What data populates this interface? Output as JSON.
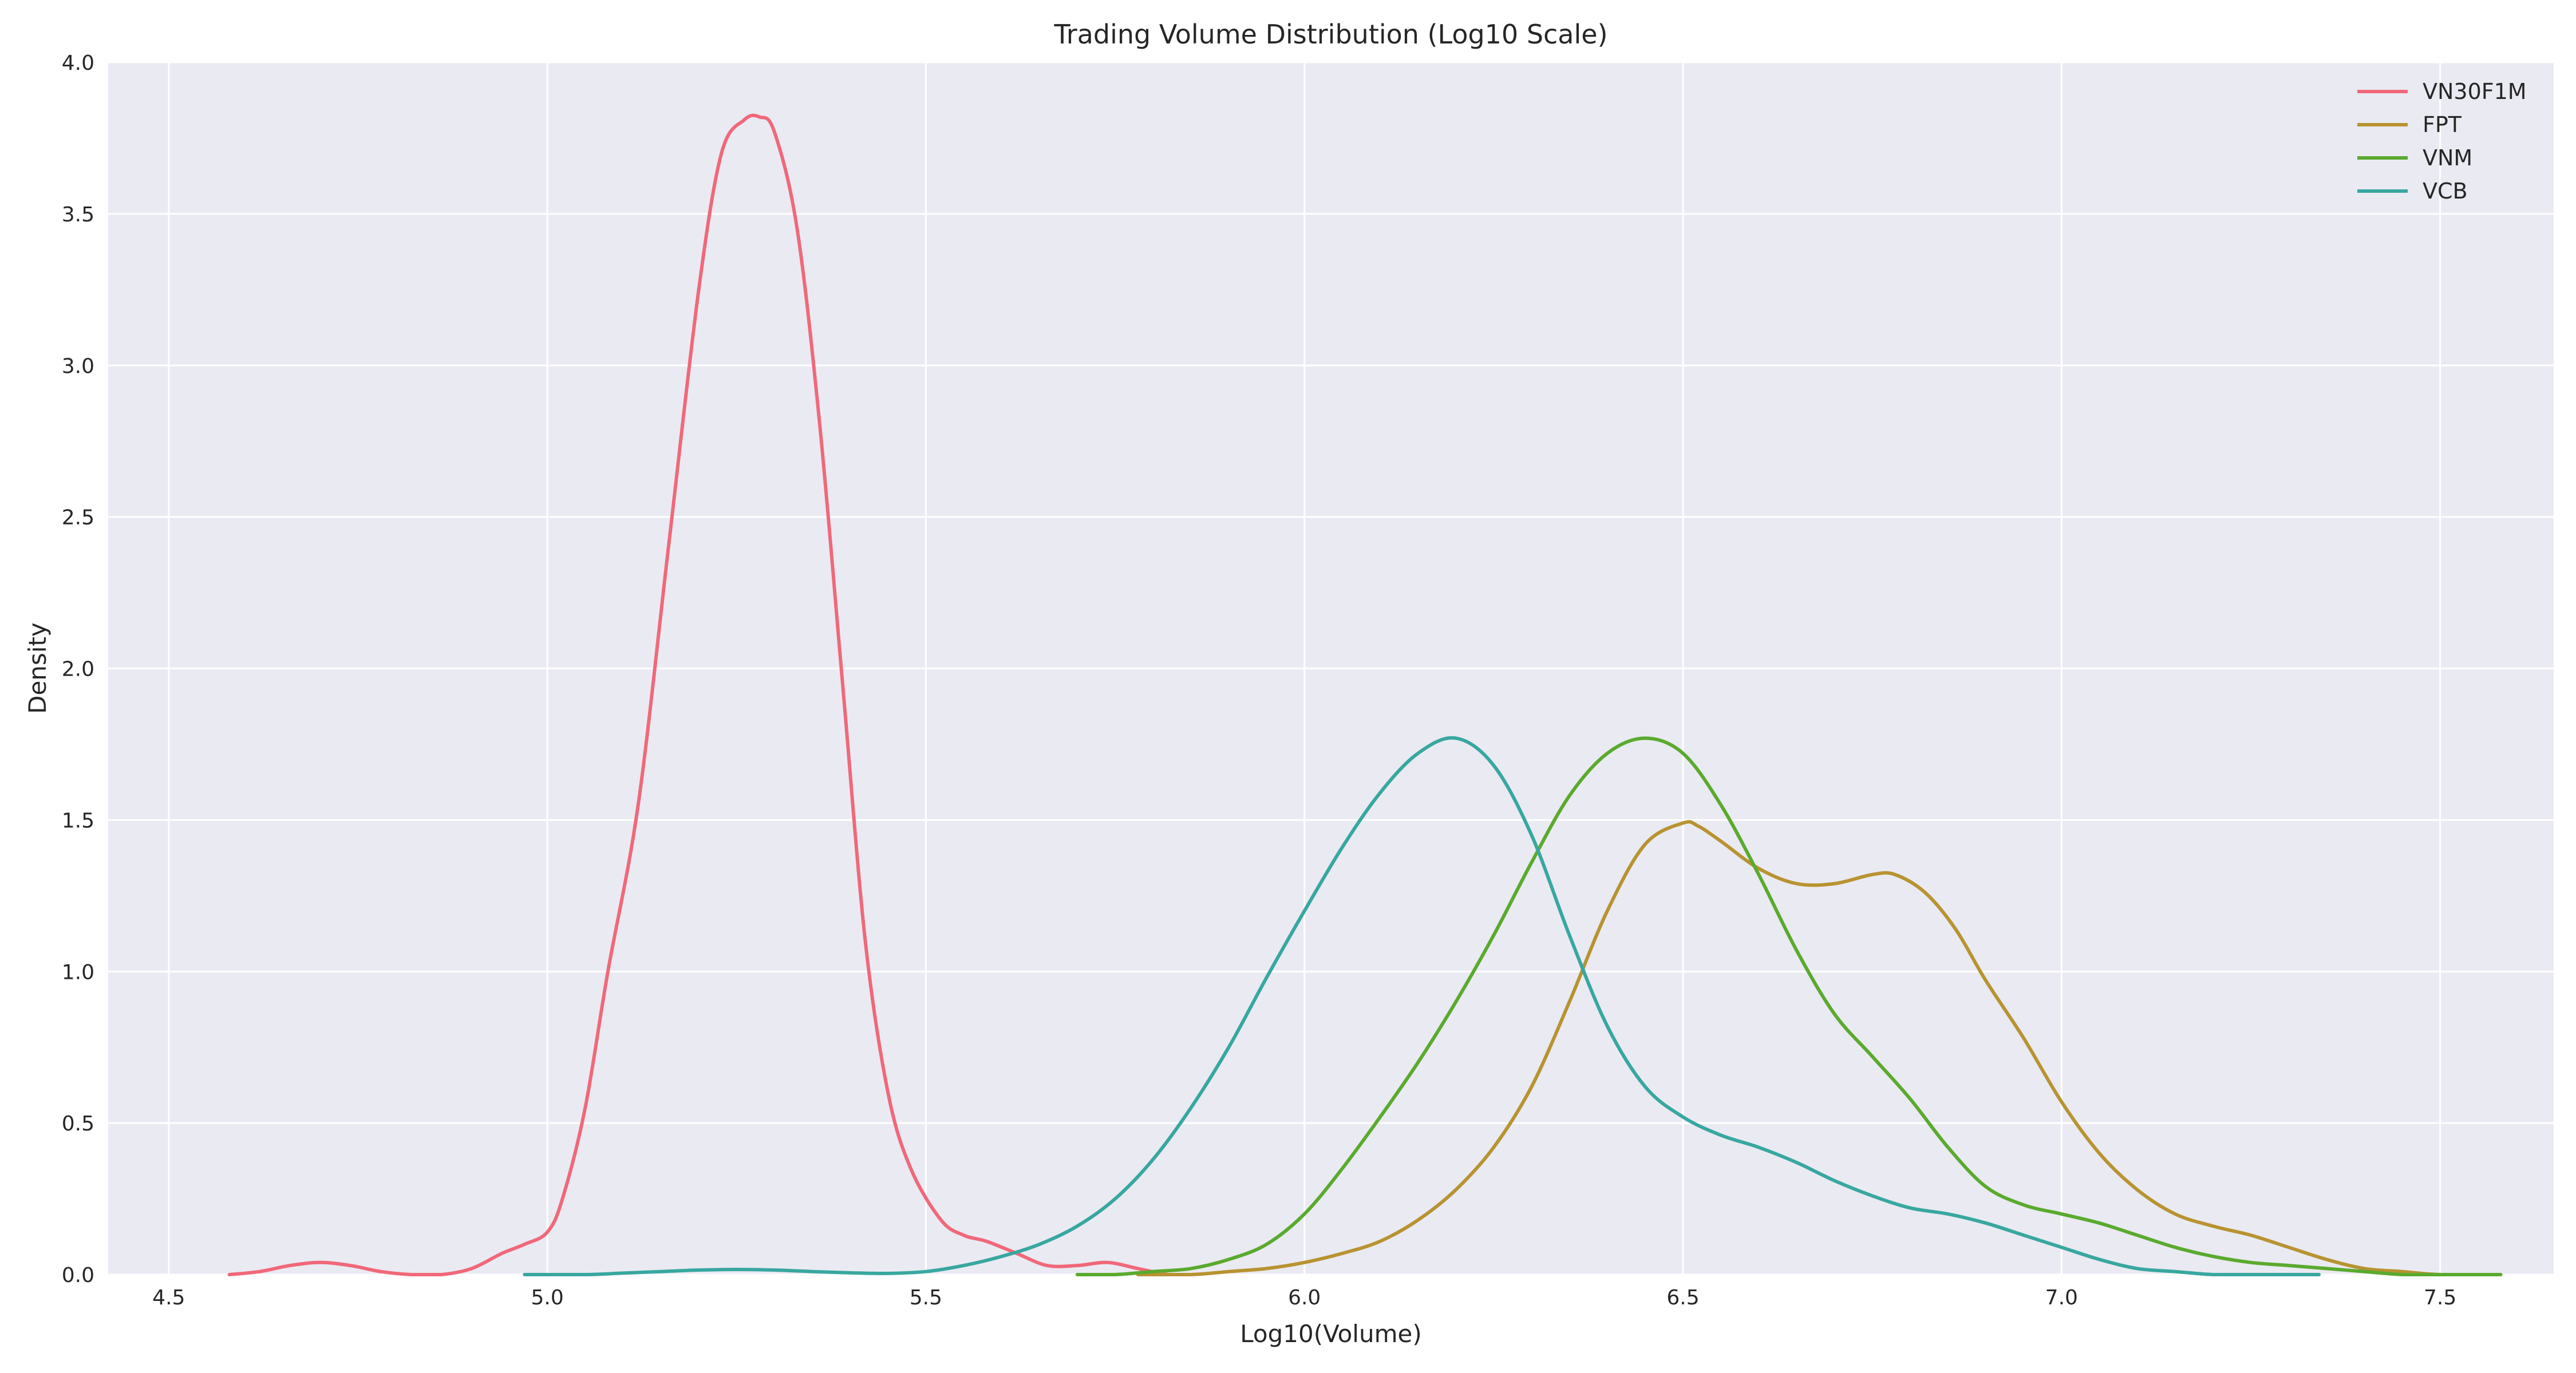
{
  "chart_data": {
    "type": "line",
    "title": "Trading Volume Distribution (Log10 Scale)",
    "xlabel": "Log10(Volume)",
    "ylabel": "Density",
    "xlim": [
      4.42,
      7.65
    ],
    "ylim": [
      0,
      4.0
    ],
    "xticks": [
      "4.5",
      "5.0",
      "5.5",
      "6.0",
      "6.5",
      "7.0",
      "7.5"
    ],
    "yticks": [
      "0.0",
      "0.5",
      "1.0",
      "1.5",
      "2.0",
      "2.5",
      "3.0",
      "3.5",
      "4.0"
    ],
    "grid": true,
    "legend_position": "top-right",
    "series": [
      {
        "name": "VN30F1M",
        "color": "#f0687a",
        "x": [
          4.58,
          4.62,
          4.66,
          4.7,
          4.74,
          4.78,
          4.82,
          4.86,
          4.9,
          4.94,
          4.97,
          5.0,
          5.02,
          5.05,
          5.08,
          5.12,
          5.16,
          5.2,
          5.23,
          5.26,
          5.28,
          5.3,
          5.33,
          5.36,
          5.39,
          5.42,
          5.45,
          5.48,
          5.52,
          5.55,
          5.58,
          5.62,
          5.66,
          5.7,
          5.74,
          5.78,
          5.82,
          5.85
        ],
        "y": [
          0.0,
          0.01,
          0.03,
          0.04,
          0.03,
          0.01,
          0.0,
          0.0,
          0.02,
          0.07,
          0.1,
          0.14,
          0.25,
          0.55,
          1.0,
          1.55,
          2.4,
          3.25,
          3.7,
          3.81,
          3.82,
          3.77,
          3.45,
          2.8,
          1.95,
          1.1,
          0.6,
          0.35,
          0.18,
          0.13,
          0.11,
          0.07,
          0.03,
          0.03,
          0.04,
          0.02,
          0.0,
          0.0
        ]
      },
      {
        "name": "FPT",
        "color": "#b89331",
        "x": [
          5.78,
          5.85,
          5.9,
          5.95,
          6.0,
          6.05,
          6.1,
          6.15,
          6.2,
          6.25,
          6.3,
          6.35,
          6.4,
          6.45,
          6.5,
          6.52,
          6.55,
          6.6,
          6.65,
          6.7,
          6.75,
          6.78,
          6.82,
          6.86,
          6.9,
          6.95,
          7.0,
          7.05,
          7.1,
          7.15,
          7.2,
          7.25,
          7.3,
          7.35,
          7.4,
          7.45,
          7.5,
          7.58
        ],
        "y": [
          0.0,
          0.0,
          0.01,
          0.02,
          0.04,
          0.07,
          0.11,
          0.18,
          0.28,
          0.42,
          0.62,
          0.9,
          1.2,
          1.42,
          1.49,
          1.48,
          1.43,
          1.34,
          1.29,
          1.29,
          1.32,
          1.32,
          1.26,
          1.14,
          0.97,
          0.78,
          0.57,
          0.4,
          0.28,
          0.2,
          0.16,
          0.13,
          0.09,
          0.05,
          0.02,
          0.01,
          0.0,
          0.0
        ]
      },
      {
        "name": "VNM",
        "color": "#5aaa2e",
        "x": [
          5.7,
          5.75,
          5.8,
          5.85,
          5.9,
          5.95,
          6.0,
          6.05,
          6.1,
          6.15,
          6.2,
          6.25,
          6.3,
          6.35,
          6.4,
          6.45,
          6.5,
          6.55,
          6.6,
          6.65,
          6.7,
          6.75,
          6.8,
          6.85,
          6.9,
          6.95,
          7.0,
          7.05,
          7.1,
          7.15,
          7.2,
          7.25,
          7.3,
          7.35,
          7.4,
          7.45,
          7.5,
          7.58
        ],
        "y": [
          0.0,
          0.0,
          0.01,
          0.02,
          0.05,
          0.1,
          0.2,
          0.35,
          0.52,
          0.7,
          0.9,
          1.12,
          1.36,
          1.58,
          1.72,
          1.77,
          1.72,
          1.55,
          1.32,
          1.07,
          0.86,
          0.72,
          0.58,
          0.42,
          0.29,
          0.23,
          0.2,
          0.17,
          0.13,
          0.09,
          0.06,
          0.04,
          0.03,
          0.02,
          0.01,
          0.0,
          0.0,
          0.0
        ]
      },
      {
        "name": "VCB",
        "color": "#38a7a0",
        "x": [
          4.97,
          5.05,
          5.1,
          5.15,
          5.2,
          5.25,
          5.3,
          5.35,
          5.4,
          5.45,
          5.5,
          5.55,
          5.6,
          5.65,
          5.7,
          5.75,
          5.8,
          5.85,
          5.9,
          5.95,
          6.0,
          6.05,
          6.1,
          6.15,
          6.2,
          6.25,
          6.3,
          6.35,
          6.4,
          6.45,
          6.5,
          6.55,
          6.6,
          6.65,
          6.7,
          6.75,
          6.8,
          6.85,
          6.9,
          6.95,
          7.0,
          7.05,
          7.1,
          7.15,
          7.2,
          7.25,
          7.34
        ],
        "y": [
          0.0,
          0.0,
          0.005,
          0.01,
          0.015,
          0.017,
          0.015,
          0.01,
          0.006,
          0.004,
          0.01,
          0.03,
          0.06,
          0.1,
          0.16,
          0.25,
          0.38,
          0.55,
          0.75,
          0.98,
          1.2,
          1.41,
          1.59,
          1.72,
          1.77,
          1.68,
          1.45,
          1.12,
          0.82,
          0.62,
          0.52,
          0.46,
          0.42,
          0.37,
          0.31,
          0.26,
          0.22,
          0.2,
          0.17,
          0.13,
          0.09,
          0.05,
          0.02,
          0.01,
          0.0,
          0.0,
          0.0
        ]
      }
    ]
  }
}
